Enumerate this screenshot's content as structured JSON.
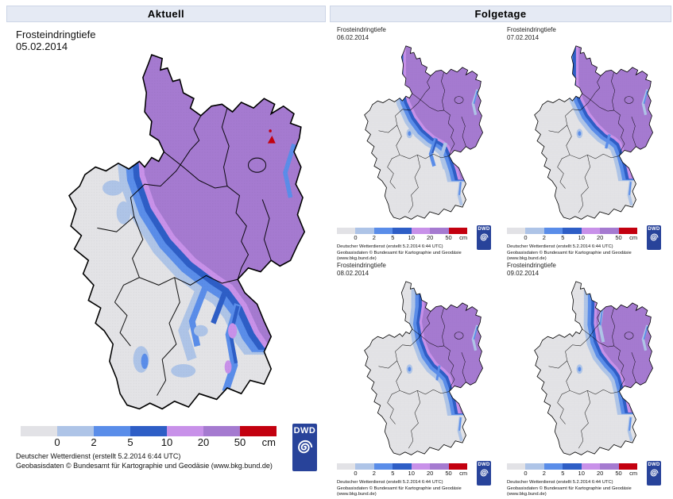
{
  "panels": {
    "aktuell": {
      "header": "Aktuell"
    },
    "folgetage": {
      "header": "Folgetage"
    }
  },
  "maps": {
    "main": {
      "title": "Frosteindringtiefe",
      "date": "05.02.2014"
    },
    "small": [
      {
        "title": "Frosteindringtiefe",
        "date": "06.02.2014"
      },
      {
        "title": "Frosteindringtiefe",
        "date": "07.02.2014"
      },
      {
        "title": "Frosteindringtiefe",
        "date": "08.02.2014"
      },
      {
        "title": "Frosteindringtiefe",
        "date": "09.02.2014"
      }
    ]
  },
  "legend": {
    "tick_labels": [
      "0",
      "2",
      "5",
      "10",
      "20",
      "50"
    ],
    "unit": "cm",
    "colors": [
      "#e2e2e6",
      "#aec4e7",
      "#5a8de9",
      "#2e5ec6",
      "#c891e9",
      "#a57ad0",
      "#c3000f"
    ]
  },
  "attribution": {
    "line1": "Deutscher Wetterdienst (erstellt 5.2.2014 6:44 UTC)",
    "line2": "Geobasisdaten © Bundesamt für Kartographie und Geodäsie (www.bkg.bund.de)"
  },
  "logo": {
    "label": "DWD"
  },
  "map_colors": {
    "land": "#e3e3e6",
    "sea": "#ffffff",
    "border": "#000000",
    "frost_0_2": "#aec4e7",
    "frost_2_5": "#5a8de9",
    "frost_5_10": "#2e5ec6",
    "frost_10_20": "#c891e9",
    "frost_20_50": "#a57ad0",
    "frost_gt_50": "#c3000f",
    "station_marker": "#c3000f"
  }
}
